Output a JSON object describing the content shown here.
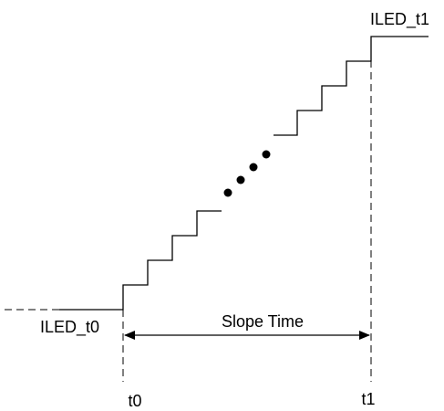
{
  "labels": {
    "iled_t1": "ILED_t1",
    "iled_t0": "ILED_t0",
    "slope_time": "Slope Time",
    "t0": "t0",
    "t1": "t1"
  }
}
